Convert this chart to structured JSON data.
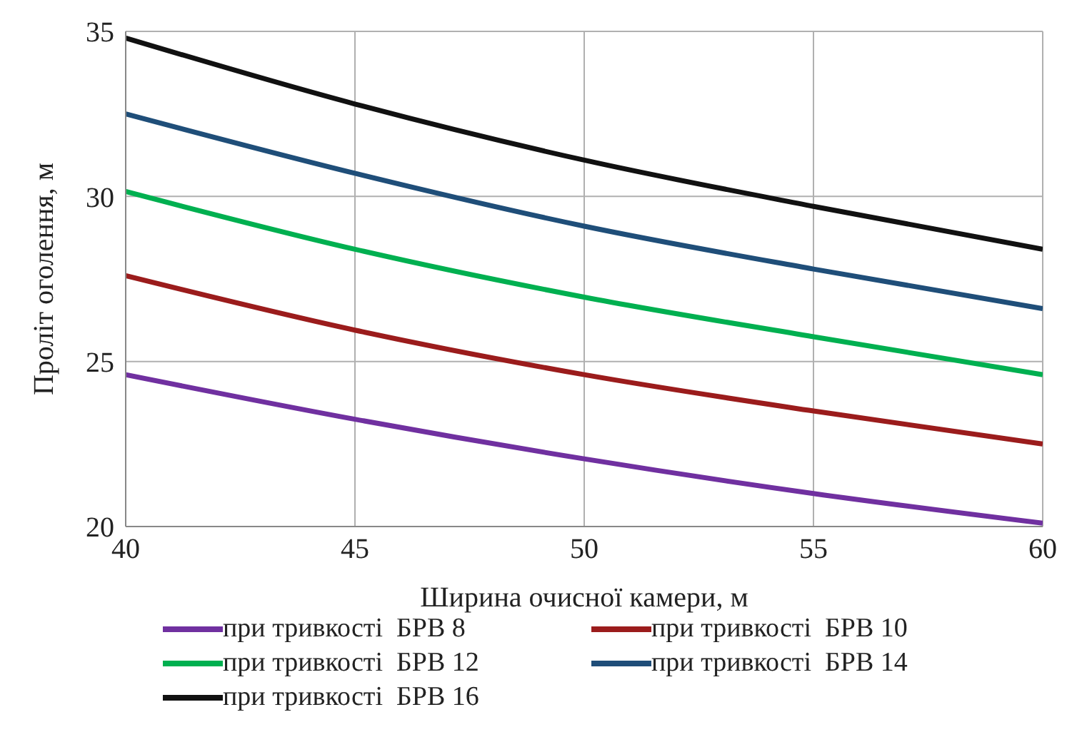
{
  "chart_data": {
    "type": "line",
    "xlabel": "Ширина очисної  камери, м",
    "ylabel": "Проліт оголення, м",
    "x": [
      40,
      45,
      50,
      55,
      60
    ],
    "series": [
      {
        "name": "при тривкості  БРВ 8",
        "color": "#7030a0",
        "values": [
          24.6,
          23.25,
          22.05,
          21.0,
          20.1
        ]
      },
      {
        "name": "при тривкості  БРВ 10",
        "color": "#9b1c1c",
        "values": [
          27.6,
          25.95,
          24.6,
          23.5,
          22.5
        ]
      },
      {
        "name": "при тривкості  БРВ 12",
        "color": "#00b050",
        "values": [
          30.15,
          28.4,
          26.95,
          25.75,
          24.6
        ]
      },
      {
        "name": "при тривкості  БРВ 14",
        "color": "#1f4e79",
        "values": [
          32.5,
          30.7,
          29.1,
          27.8,
          26.6
        ]
      },
      {
        "name": "при тривкості  БРВ 16",
        "color": "#111111",
        "values": [
          34.8,
          32.8,
          31.1,
          29.7,
          28.4
        ]
      }
    ],
    "xlim": [
      40,
      60
    ],
    "xticks": [
      40,
      45,
      50,
      55,
      60
    ],
    "ylim": [
      20,
      35
    ],
    "yticks": [
      20,
      25,
      30,
      35
    ],
    "grid": true,
    "legend": "bottom",
    "marker": "none",
    "line_style": "solid"
  }
}
